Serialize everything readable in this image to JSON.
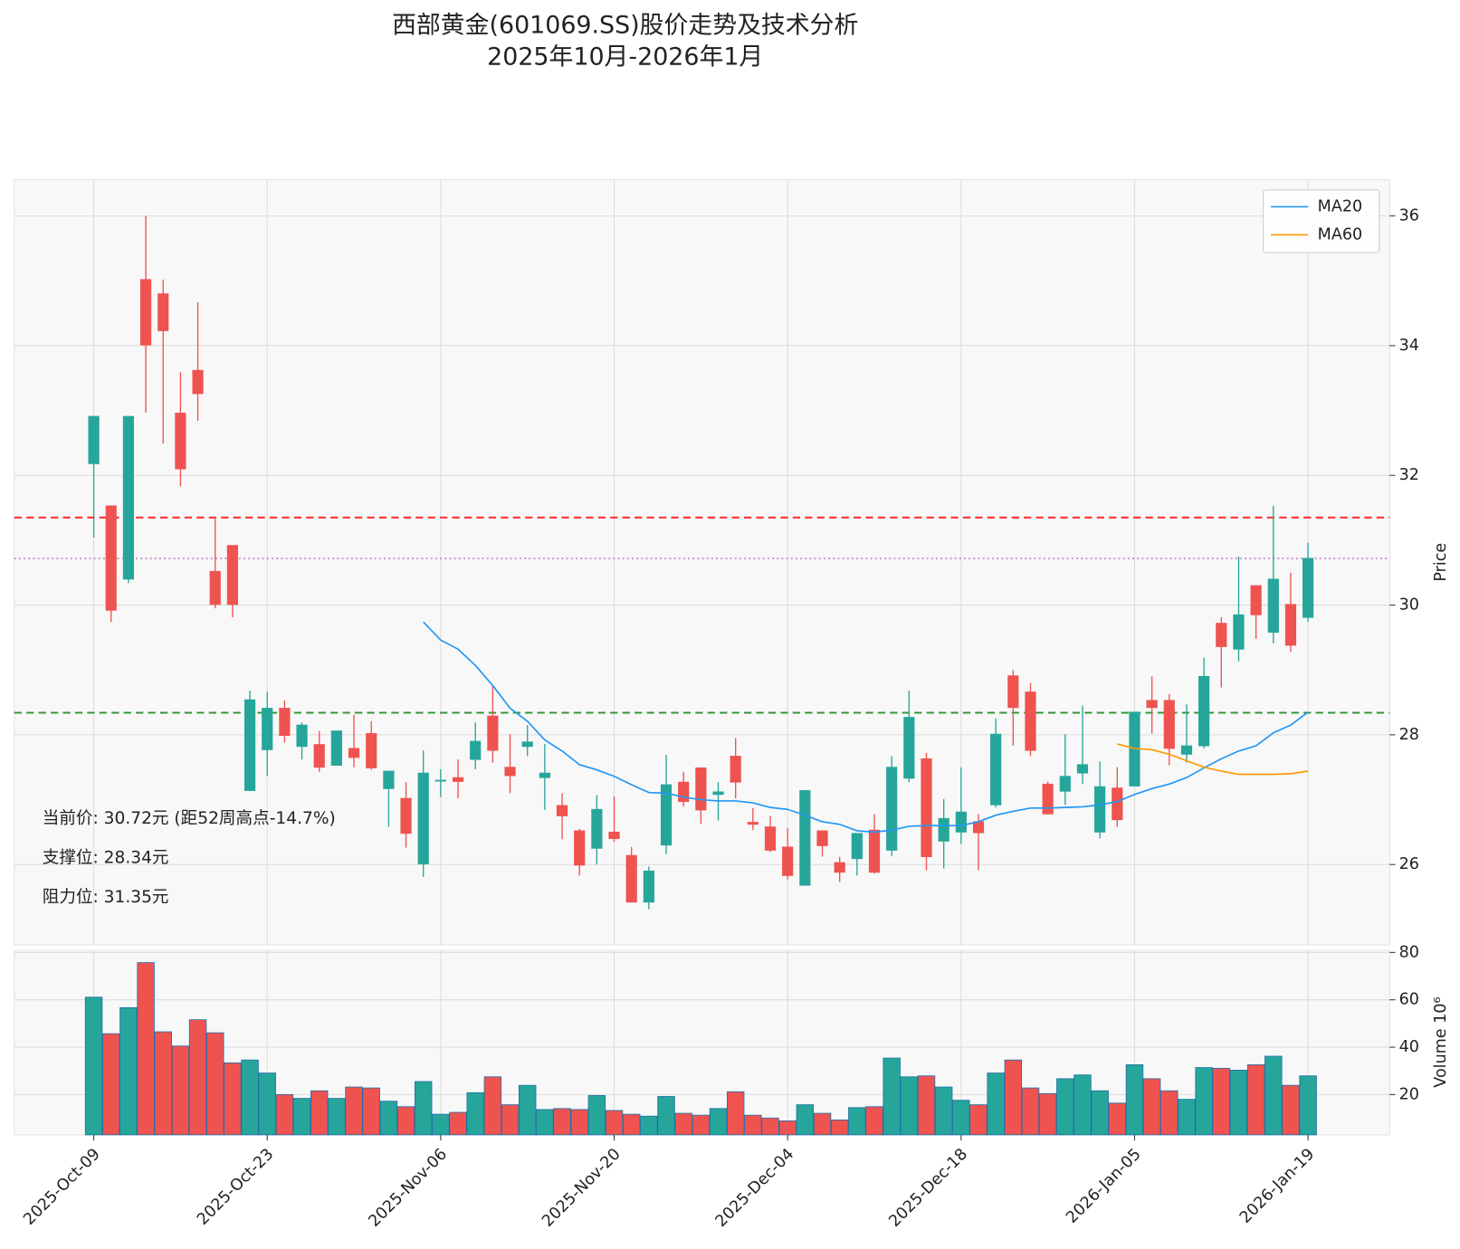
{
  "chart_data": {
    "type": "candlestick",
    "title": "西部黄金(601069.SS)股价走势及技术分析",
    "subtitle": "2025年10月-2026年1月",
    "categories": [
      "2025-Oct-09",
      null,
      null,
      null,
      null,
      null,
      null,
      null,
      null,
      null,
      "2025-Oct-23",
      null,
      null,
      null,
      null,
      null,
      null,
      null,
      null,
      null,
      "2025-Nov-06",
      null,
      null,
      null,
      null,
      null,
      null,
      null,
      null,
      null,
      "2025-Nov-20",
      null,
      null,
      null,
      null,
      null,
      null,
      null,
      null,
      null,
      "2025-Dec-04",
      null,
      null,
      null,
      null,
      null,
      null,
      null,
      null,
      null,
      "2025-Dec-18",
      null,
      null,
      null,
      null,
      null,
      null,
      null,
      null,
      null,
      "2026-Jan-05",
      null,
      null,
      null,
      null,
      null,
      null,
      null,
      null,
      null,
      "2026-Jan-19"
    ],
    "open": [
      32.18,
      31.53,
      30.4,
      35.02,
      34.8,
      32.96,
      33.62,
      30.52,
      30.92,
      27.14,
      27.77,
      28.41,
      27.82,
      27.85,
      27.53,
      27.79,
      28.02,
      27.17,
      27.02,
      26.01,
      27.29,
      27.34,
      27.62,
      28.29,
      27.5,
      27.82,
      27.34,
      26.91,
      26.52,
      26.25,
      26.5,
      26.14,
      25.42,
      26.3,
      27.27,
      27.49,
      27.08,
      27.67,
      26.65,
      26.58,
      26.27,
      25.68,
      26.52,
      26.03,
      26.09,
      26.53,
      26.22,
      27.33,
      27.63,
      26.36,
      26.5,
      26.66,
      26.92,
      28.91,
      28.66,
      27.24,
      27.13,
      27.41,
      26.5,
      27.18,
      27.21,
      28.53,
      28.53,
      27.7,
      27.83,
      29.72,
      29.32,
      30.3,
      29.58,
      30.01,
      29.81
    ],
    "high": [
      32.91,
      31.53,
      32.91,
      36.0,
      35.02,
      33.59,
      34.67,
      31.35,
      30.92,
      28.68,
      28.66,
      28.53,
      28.19,
      28.06,
      28.06,
      28.31,
      28.21,
      27.44,
      27.27,
      27.76,
      27.47,
      27.62,
      28.19,
      28.76,
      28.01,
      28.15,
      27.86,
      27.1,
      26.55,
      27.07,
      27.05,
      26.27,
      25.97,
      27.69,
      27.43,
      27.5,
      27.27,
      27.95,
      26.87,
      26.75,
      26.56,
      27.14,
      26.52,
      26.12,
      26.48,
      26.78,
      27.67,
      28.68,
      27.72,
      27.01,
      27.5,
      26.78,
      28.25,
      29.0,
      28.8,
      27.28,
      28.01,
      28.45,
      27.59,
      27.5,
      28.35,
      28.9,
      28.63,
      28.47,
      29.19,
      29.81,
      30.75,
      30.3,
      31.53,
      30.5,
      30.96
    ],
    "low": [
      31.04,
      29.74,
      30.34,
      32.97,
      32.49,
      31.83,
      32.84,
      29.95,
      29.81,
      27.14,
      27.37,
      27.88,
      27.62,
      27.43,
      27.53,
      27.5,
      27.46,
      26.58,
      26.26,
      25.81,
      27.04,
      27.02,
      27.47,
      27.57,
      27.1,
      27.67,
      26.84,
      26.39,
      25.83,
      26.0,
      26.35,
      25.42,
      25.31,
      26.16,
      26.89,
      26.63,
      26.68,
      27.02,
      26.53,
      26.19,
      25.77,
      25.68,
      26.12,
      25.73,
      25.83,
      25.86,
      26.13,
      27.27,
      25.91,
      25.94,
      26.32,
      25.91,
      26.88,
      27.83,
      27.67,
      26.77,
      26.92,
      27.24,
      26.4,
      26.58,
      27.21,
      28.02,
      27.53,
      27.57,
      27.79,
      28.73,
      29.13,
      29.48,
      29.41,
      29.28,
      29.74
    ],
    "close": [
      32.91,
      29.92,
      32.91,
      34.01,
      34.23,
      32.1,
      33.26,
      30.01,
      30.01,
      28.54,
      28.41,
      27.99,
      28.15,
      27.5,
      28.06,
      27.65,
      27.49,
      27.44,
      26.48,
      27.41,
      27.3,
      27.28,
      27.9,
      27.76,
      27.37,
      27.89,
      27.41,
      26.75,
      25.99,
      26.85,
      26.4,
      25.42,
      25.9,
      27.23,
      26.97,
      26.84,
      27.12,
      27.27,
      26.62,
      26.22,
      25.83,
      27.14,
      26.29,
      25.88,
      26.48,
      25.88,
      27.5,
      28.27,
      26.12,
      26.71,
      26.81,
      26.49,
      28.01,
      28.42,
      27.76,
      26.78,
      27.36,
      27.54,
      27.2,
      26.69,
      28.35,
      28.42,
      27.79,
      27.83,
      28.9,
      29.36,
      29.85,
      29.85,
      30.4,
      29.38,
      30.72
    ],
    "up_color": "#26a69a",
    "down_color": "#ef5350",
    "ylabel": "Price",
    "ylim": [
      24.76,
      36.56
    ],
    "yticks": [
      26,
      28,
      30,
      32,
      34,
      36
    ],
    "grid": true,
    "legend": "upper right",
    "series": [
      {
        "name": "MA20",
        "color": "#2196f3",
        "values": [
          null,
          null,
          null,
          null,
          null,
          null,
          null,
          null,
          null,
          null,
          null,
          null,
          null,
          null,
          null,
          null,
          null,
          null,
          null,
          29.74,
          29.46,
          29.32,
          29.07,
          28.76,
          28.41,
          28.21,
          27.92,
          27.75,
          27.54,
          27.46,
          27.36,
          27.23,
          27.11,
          27.1,
          27.04,
          27.0,
          26.98,
          26.98,
          26.95,
          26.88,
          26.85,
          26.76,
          26.66,
          26.62,
          26.52,
          26.5,
          26.53,
          26.59,
          26.6,
          26.6,
          26.6,
          26.66,
          26.76,
          26.82,
          26.87,
          26.87,
          26.88,
          26.89,
          26.92,
          26.97,
          27.08,
          27.17,
          27.24,
          27.34,
          27.49,
          27.63,
          27.75,
          27.83,
          28.03,
          28.15,
          28.35
        ]
      },
      {
        "name": "MA60",
        "color": "#ff9800",
        "values": [
          null,
          null,
          null,
          null,
          null,
          null,
          null,
          null,
          null,
          null,
          null,
          null,
          null,
          null,
          null,
          null,
          null,
          null,
          null,
          null,
          null,
          null,
          null,
          null,
          null,
          null,
          null,
          null,
          null,
          null,
          null,
          null,
          null,
          null,
          null,
          null,
          null,
          null,
          null,
          null,
          null,
          null,
          null,
          null,
          null,
          null,
          null,
          null,
          null,
          null,
          null,
          null,
          null,
          null,
          null,
          null,
          null,
          null,
          null,
          27.86,
          27.79,
          27.77,
          27.7,
          27.6,
          27.5,
          27.44,
          27.39,
          27.39,
          27.39,
          27.4,
          27.44
        ]
      }
    ],
    "hlines": [
      {
        "value": 31.35,
        "color": "#ff0000",
        "style": "dashed"
      },
      {
        "value": 28.34,
        "color": "#008000",
        "style": "dashed"
      },
      {
        "value": 30.72,
        "color": "#800080",
        "style": "dotted"
      }
    ],
    "annotations": [
      {
        "text": "当前价: 30.72元 (距52周高点-14.7%)",
        "color": "#800080"
      },
      {
        "text": "支撑位: 28.34元",
        "color": "#008000"
      },
      {
        "text": "阻力位: 31.35元",
        "color": "#ff0000"
      }
    ],
    "volume": {
      "ylabel": "Volume 10⁶",
      "ylim": [
        3,
        80.8
      ],
      "yticks": [
        20,
        40,
        60,
        80
      ],
      "values": [
        61.1,
        45.7,
        56.7,
        75.7,
        46.5,
        40.5,
        51.6,
        46.1,
        33.4,
        34.6,
        29.1,
        20.0,
        18.4,
        21.6,
        18.4,
        23.2,
        22.8,
        17.2,
        14.9,
        25.5,
        11.7,
        12.5,
        20.8,
        27.5,
        15.7,
        23.9,
        13.7,
        14.1,
        13.7,
        19.6,
        13.3,
        11.7,
        10.9,
        19.2,
        12.1,
        11.3,
        14.1,
        21.2,
        11.3,
        10.1,
        8.9,
        15.7,
        12.1,
        9.3,
        14.5,
        14.9,
        35.4,
        27.5,
        27.9,
        23.2,
        17.6,
        15.7,
        29.1,
        34.6,
        22.8,
        20.4,
        26.7,
        28.3,
        21.6,
        16.4,
        32.6,
        26.7,
        21.6,
        18.0,
        31.4,
        31.1,
        30.3,
        32.6,
        36.2,
        23.9,
        27.9
      ]
    }
  }
}
